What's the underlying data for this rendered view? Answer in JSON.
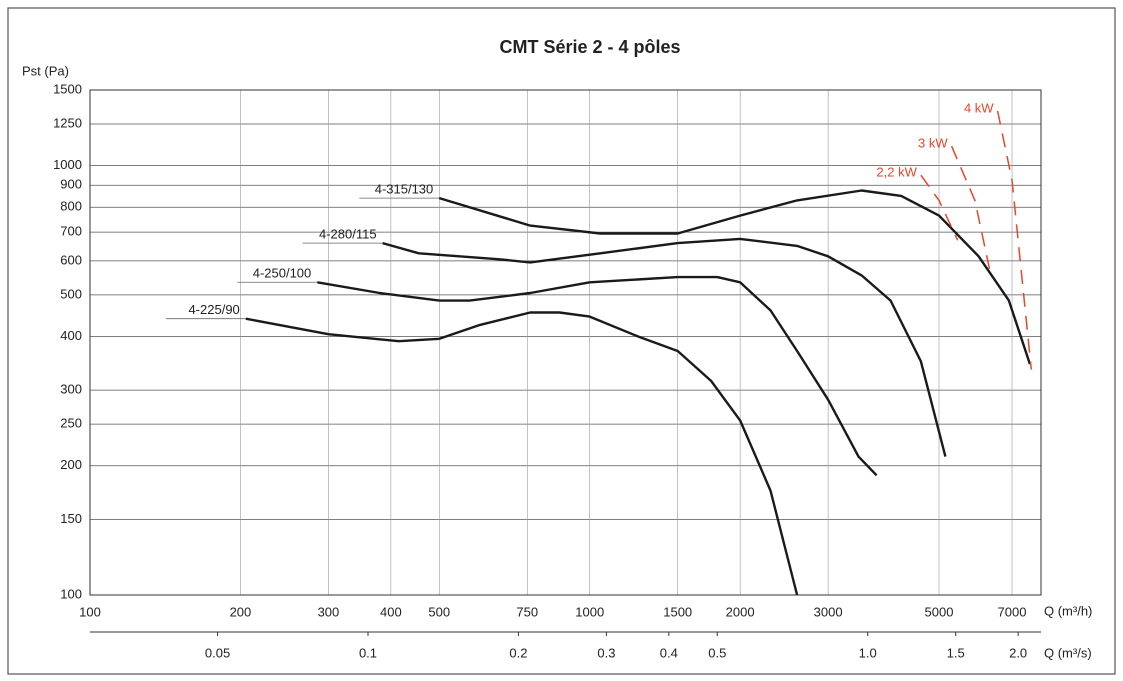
{
  "chart_data": {
    "type": "line",
    "title": "CMT Série 2 - 4 pôles",
    "y_label": "Pst (Pa)",
    "x_label": "Q (m³/h)",
    "x2_label": "Q (m³/s)",
    "log_x": true,
    "log_y": true,
    "grid": true,
    "xlim": [
      100,
      8000
    ],
    "xticks": [
      100,
      200,
      300,
      400,
      500,
      750,
      1000,
      1500,
      2000,
      3000,
      5000,
      7000
    ],
    "x2lim": [
      0.027778,
      2.2222
    ],
    "x2ticks": [
      0.05,
      0.1,
      0.2,
      0.3,
      0.4,
      0.5,
      {
        "value": 1,
        "label": "1.0"
      },
      1.5,
      {
        "value": 2,
        "label": "2.0"
      }
    ],
    "ylim": [
      100,
      1500
    ],
    "yticks": [
      100,
      150,
      200,
      250,
      300,
      400,
      500,
      600,
      700,
      800,
      900,
      1000,
      1250,
      1500
    ],
    "series": [
      {
        "name": "4-315/130",
        "color": "#1a1a1a",
        "dashed": false,
        "x": [
          500,
          760,
          1050,
          1500,
          2000,
          2600,
          3500,
          4200,
          5000,
          6000,
          6900,
          7600
        ],
        "values": [
          840,
          725,
          695,
          695,
          765,
          830,
          875,
          850,
          765,
          615,
          485,
          345
        ]
      },
      {
        "name": "4-280/115",
        "color": "#1a1a1a",
        "dashed": false,
        "x": [
          385,
          455,
          660,
          760,
          1050,
          1500,
          2000,
          2600,
          3000,
          3500,
          4000,
          4600,
          5150
        ],
        "values": [
          660,
          625,
          605,
          595,
          625,
          660,
          675,
          650,
          615,
          555,
          485,
          350,
          210
        ]
      },
      {
        "name": "4-250/100",
        "color": "#1a1a1a",
        "dashed": false,
        "x": [
          285,
          380,
          500,
          575,
          760,
          1000,
          1500,
          1800,
          2000,
          2300,
          2600,
          3000,
          3450,
          3750
        ],
        "values": [
          535,
          505,
          485,
          485,
          505,
          535,
          550,
          550,
          535,
          460,
          370,
          285,
          210,
          190
        ]
      },
      {
        "name": "4-225/90",
        "color": "#1a1a1a",
        "dashed": false,
        "x": [
          205,
          300,
          415,
          500,
          600,
          760,
          870,
          1000,
          1250,
          1500,
          1750,
          2000,
          2300,
          2600
        ],
        "values": [
          440,
          405,
          390,
          395,
          425,
          455,
          455,
          445,
          400,
          370,
          315,
          255,
          175,
          100
        ]
      },
      {
        "name": "2,2 kW",
        "color": "#e8452c",
        "dashed": true,
        "x": [
          4600,
          5000,
          5450
        ],
        "values": [
          950,
          830,
          670
        ]
      },
      {
        "name": "3 kW",
        "color": "#e8452c",
        "dashed": true,
        "x": [
          5300,
          5900,
          6350
        ],
        "values": [
          1110,
          830,
          555
        ]
      },
      {
        "name": "4 kW",
        "color": "#e8452c",
        "dashed": true,
        "x": [
          6550,
          7000,
          7650
        ],
        "values": [
          1340,
          925,
          335
        ]
      }
    ]
  }
}
